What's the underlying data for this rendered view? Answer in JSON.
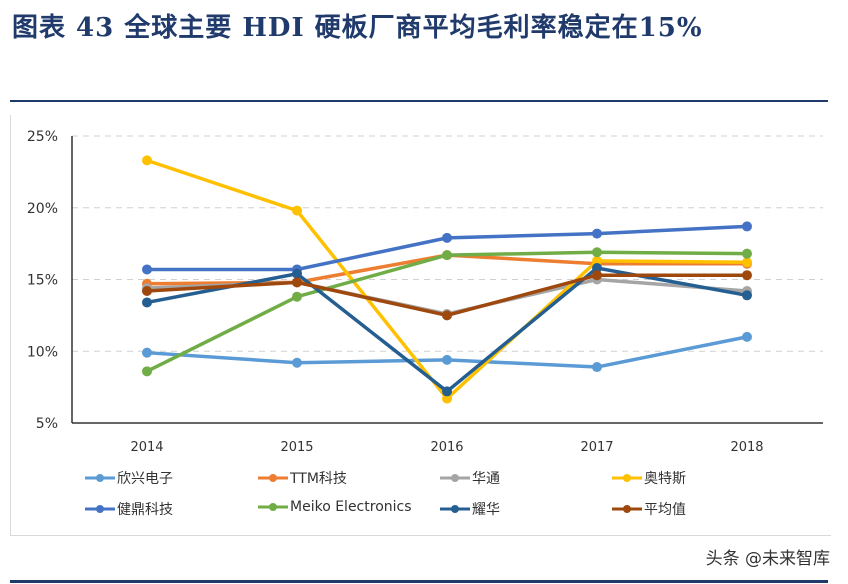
{
  "title": "图表 43  全球主要 HDI 硬板厂商平均毛利率稳定在15%",
  "watermark": "头条 @未来智库",
  "chart_data": {
    "type": "line",
    "title": "",
    "xlabel": "",
    "ylabel": "",
    "categories": [
      "2014",
      "2015",
      "2016",
      "2017",
      "2018"
    ],
    "ylim": [
      5,
      25
    ],
    "yticks": [
      "5%",
      "10%",
      "15%",
      "20%",
      "25%"
    ],
    "ytick_values": [
      5,
      10,
      15,
      20,
      25
    ],
    "grid": "horizontal dashed",
    "legend": "bottom",
    "series": [
      {
        "name": "欣兴电子",
        "color": "#5B9BD5",
        "values": [
          9.9,
          9.2,
          9.4,
          8.9,
          11.0
        ]
      },
      {
        "name": "TTM科技",
        "color": "#ED7D31",
        "values": [
          14.7,
          14.8,
          16.7,
          16.1,
          16.1
        ]
      },
      {
        "name": "华通",
        "color": "#A5A5A5",
        "values": [
          14.4,
          14.8,
          12.6,
          15.0,
          14.2
        ]
      },
      {
        "name": "奥特斯",
        "color": "#FFC000",
        "values": [
          23.3,
          19.8,
          6.7,
          16.3,
          16.2
        ]
      },
      {
        "name": "健鼎科技",
        "color": "#4472C4",
        "values": [
          15.7,
          15.7,
          17.9,
          18.2,
          18.7
        ]
      },
      {
        "name": "Meiko Electronics",
        "color": "#70AD47",
        "values": [
          8.6,
          13.8,
          16.7,
          16.9,
          16.8
        ]
      },
      {
        "name": "耀华",
        "color": "#255E91",
        "values": [
          13.4,
          15.4,
          7.2,
          15.8,
          13.9
        ]
      },
      {
        "name": "平均值",
        "color": "#9E480E",
        "values": [
          14.2,
          14.8,
          12.5,
          15.3,
          15.3
        ]
      }
    ]
  }
}
